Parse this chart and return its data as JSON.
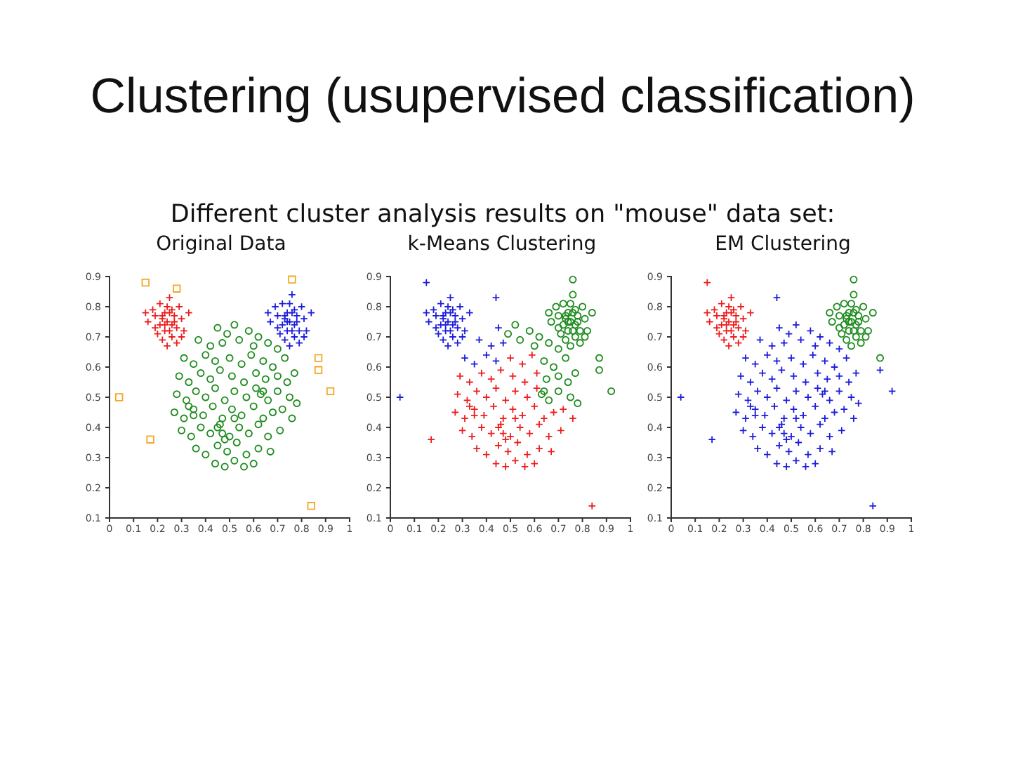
{
  "chart_data": [
    {
      "type": "other",
      "title": "Clustering (usupervised classification)",
      "subtitle": "Different cluster analysis results on \"mouse\" data set:"
    },
    {
      "type": "scatter",
      "title": "Original Data",
      "xlim": [
        0,
        1
      ],
      "ylim": [
        0.1,
        0.9
      ],
      "xticks": [
        0,
        0.1,
        0.2,
        0.3,
        0.4,
        0.5,
        0.6,
        0.7,
        0.8,
        0.9,
        1
      ],
      "yticks": [
        0.1,
        0.2,
        0.3,
        0.4,
        0.5,
        0.6,
        0.7,
        0.8,
        0.9
      ],
      "series": [
        {
          "color": "#ee1c1c",
          "marker": "cross",
          "x": [
            0.24,
            0.22,
            0.26,
            0.25,
            0.23,
            0.27,
            0.21,
            0.28,
            0.24,
            0.19,
            0.3,
            0.26,
            0.22,
            0.18,
            0.29,
            0.25,
            0.2,
            0.31,
            0.23,
            0.27,
            0.16,
            0.33,
            0.24,
            0.21,
            0.28,
            0.15,
            0.26,
            0.23,
            0.3,
            0.19,
            0.25,
            0.22
          ],
          "values": [
            0.75,
            0.76,
            0.74,
            0.78,
            0.72,
            0.77,
            0.74,
            0.73,
            0.8,
            0.77,
            0.76,
            0.7,
            0.69,
            0.79,
            0.8,
            0.83,
            0.71,
            0.72,
            0.78,
            0.75,
            0.75,
            0.78,
            0.67,
            0.81,
            0.68,
            0.78,
            0.79,
            0.74,
            0.7,
            0.73,
            0.72,
            0.77
          ]
        },
        {
          "color": "#1c1cdc",
          "marker": "cross",
          "x": [
            0.75,
            0.73,
            0.77,
            0.76,
            0.74,
            0.78,
            0.72,
            0.79,
            0.75,
            0.7,
            0.81,
            0.77,
            0.73,
            0.69,
            0.8,
            0.76,
            0.71,
            0.82,
            0.74,
            0.78,
            0.67,
            0.84,
            0.75,
            0.72,
            0.79,
            0.66,
            0.77,
            0.74,
            0.81,
            0.7,
            0.76,
            0.73
          ],
          "values": [
            0.75,
            0.77,
            0.74,
            0.78,
            0.72,
            0.77,
            0.74,
            0.72,
            0.81,
            0.77,
            0.76,
            0.7,
            0.69,
            0.8,
            0.8,
            0.84,
            0.71,
            0.72,
            0.78,
            0.75,
            0.75,
            0.78,
            0.67,
            0.81,
            0.68,
            0.78,
            0.79,
            0.75,
            0.7,
            0.73,
            0.72,
            0.76
          ]
        },
        {
          "color": "#1e8c1e",
          "marker": "circle",
          "x": [
            0.45,
            0.52,
            0.58,
            0.49,
            0.62,
            0.37,
            0.42,
            0.47,
            0.54,
            0.6,
            0.66,
            0.7,
            0.31,
            0.35,
            0.4,
            0.44,
            0.5,
            0.55,
            0.59,
            0.64,
            0.68,
            0.73,
            0.29,
            0.33,
            0.38,
            0.42,
            0.46,
            0.51,
            0.56,
            0.61,
            0.65,
            0.7,
            0.74,
            0.77,
            0.28,
            0.32,
            0.36,
            0.4,
            0.44,
            0.48,
            0.52,
            0.57,
            0.61,
            0.66,
            0.7,
            0.75,
            0.78,
            0.27,
            0.31,
            0.35,
            0.39,
            0.43,
            0.47,
            0.51,
            0.55,
            0.6,
            0.64,
            0.68,
            0.72,
            0.76,
            0.3,
            0.34,
            0.38,
            0.42,
            0.46,
            0.5,
            0.54,
            0.58,
            0.62,
            0.66,
            0.71,
            0.36,
            0.4,
            0.45,
            0.49,
            0.53,
            0.57,
            0.62,
            0.67,
            0.44,
            0.48,
            0.52,
            0.56,
            0.6,
            0.45,
            0.47,
            0.33,
            0.35,
            0.63,
            0.64,
            0.48,
            0.52
          ],
          "values": [
            0.73,
            0.74,
            0.72,
            0.71,
            0.7,
            0.69,
            0.67,
            0.68,
            0.69,
            0.67,
            0.68,
            0.66,
            0.63,
            0.61,
            0.64,
            0.62,
            0.63,
            0.61,
            0.64,
            0.62,
            0.6,
            0.63,
            0.57,
            0.55,
            0.58,
            0.56,
            0.59,
            0.57,
            0.55,
            0.58,
            0.56,
            0.57,
            0.55,
            0.58,
            0.51,
            0.49,
            0.52,
            0.5,
            0.53,
            0.49,
            0.52,
            0.5,
            0.53,
            0.49,
            0.52,
            0.5,
            0.48,
            0.45,
            0.43,
            0.46,
            0.44,
            0.47,
            0.43,
            0.46,
            0.44,
            0.47,
            0.43,
            0.45,
            0.46,
            0.43,
            0.39,
            0.37,
            0.4,
            0.38,
            0.41,
            0.37,
            0.4,
            0.38,
            0.41,
            0.37,
            0.39,
            0.33,
            0.31,
            0.34,
            0.32,
            0.35,
            0.31,
            0.33,
            0.32,
            0.28,
            0.27,
            0.29,
            0.27,
            0.28,
            0.4,
            0.38,
            0.47,
            0.44,
            0.51,
            0.52,
            0.36,
            0.43
          ]
        },
        {
          "color": "#f5a623",
          "marker": "square",
          "x": [
            0.15,
            0.28,
            0.76,
            0.87,
            0.87,
            0.92,
            0.04,
            0.17,
            0.84
          ],
          "values": [
            0.88,
            0.86,
            0.89,
            0.63,
            0.59,
            0.52,
            0.5,
            0.36,
            0.14
          ]
        }
      ]
    },
    {
      "type": "scatter",
      "title": "k-Means Clustering",
      "xlim": [
        0,
        1
      ],
      "ylim": [
        0.1,
        0.9
      ],
      "xticks": [
        0,
        0.1,
        0.2,
        0.3,
        0.4,
        0.5,
        0.6,
        0.7,
        0.8,
        0.9,
        1
      ],
      "yticks": [
        0.1,
        0.2,
        0.3,
        0.4,
        0.5,
        0.6,
        0.7,
        0.8,
        0.9
      ],
      "series": [
        {
          "color": "#1c1cdc",
          "marker": "cross",
          "x": [
            0.24,
            0.22,
            0.26,
            0.25,
            0.23,
            0.27,
            0.21,
            0.28,
            0.24,
            0.19,
            0.3,
            0.26,
            0.22,
            0.18,
            0.29,
            0.25,
            0.2,
            0.31,
            0.23,
            0.27,
            0.16,
            0.33,
            0.24,
            0.21,
            0.28,
            0.15,
            0.26,
            0.23,
            0.3,
            0.19,
            0.25,
            0.22,
            0.45,
            0.37,
            0.42,
            0.47,
            0.31,
            0.35,
            0.4,
            0.44,
            0.15,
            0.44,
            0.04
          ],
          "values": [
            0.75,
            0.76,
            0.74,
            0.78,
            0.72,
            0.77,
            0.74,
            0.73,
            0.8,
            0.77,
            0.76,
            0.7,
            0.69,
            0.79,
            0.8,
            0.83,
            0.71,
            0.72,
            0.78,
            0.75,
            0.75,
            0.78,
            0.67,
            0.81,
            0.68,
            0.78,
            0.79,
            0.74,
            0.7,
            0.73,
            0.72,
            0.77,
            0.73,
            0.69,
            0.67,
            0.68,
            0.63,
            0.61,
            0.64,
            0.62,
            0.88,
            0.83,
            0.5
          ]
        },
        {
          "color": "#1e8c1e",
          "marker": "circle",
          "x": [
            0.75,
            0.73,
            0.77,
            0.76,
            0.74,
            0.78,
            0.72,
            0.79,
            0.75,
            0.7,
            0.81,
            0.77,
            0.73,
            0.69,
            0.8,
            0.76,
            0.71,
            0.82,
            0.74,
            0.78,
            0.67,
            0.84,
            0.75,
            0.72,
            0.79,
            0.66,
            0.77,
            0.74,
            0.81,
            0.7,
            0.76,
            0.73,
            0.52,
            0.58,
            0.49,
            0.62,
            0.54,
            0.6,
            0.66,
            0.7,
            0.64,
            0.68,
            0.73,
            0.65,
            0.7,
            0.74,
            0.77,
            0.66,
            0.7,
            0.75,
            0.78,
            0.63,
            0.64,
            0.76,
            0.87,
            0.87,
            0.92
          ],
          "values": [
            0.75,
            0.77,
            0.74,
            0.78,
            0.72,
            0.77,
            0.74,
            0.72,
            0.81,
            0.77,
            0.76,
            0.7,
            0.69,
            0.8,
            0.8,
            0.84,
            0.71,
            0.72,
            0.78,
            0.75,
            0.75,
            0.78,
            0.67,
            0.81,
            0.68,
            0.78,
            0.79,
            0.75,
            0.7,
            0.73,
            0.72,
            0.76,
            0.74,
            0.72,
            0.71,
            0.7,
            0.69,
            0.67,
            0.68,
            0.66,
            0.62,
            0.6,
            0.63,
            0.56,
            0.57,
            0.55,
            0.58,
            0.49,
            0.52,
            0.5,
            0.48,
            0.51,
            0.52,
            0.89,
            0.63,
            0.59,
            0.52
          ]
        },
        {
          "color": "#ee1c1c",
          "marker": "cross",
          "x": [
            0.5,
            0.55,
            0.59,
            0.29,
            0.33,
            0.38,
            0.42,
            0.46,
            0.51,
            0.56,
            0.61,
            0.28,
            0.32,
            0.36,
            0.4,
            0.44,
            0.48,
            0.52,
            0.57,
            0.61,
            0.27,
            0.31,
            0.35,
            0.39,
            0.43,
            0.47,
            0.51,
            0.55,
            0.6,
            0.64,
            0.68,
            0.72,
            0.76,
            0.3,
            0.34,
            0.38,
            0.42,
            0.46,
            0.5,
            0.54,
            0.58,
            0.62,
            0.66,
            0.71,
            0.36,
            0.4,
            0.45,
            0.49,
            0.53,
            0.57,
            0.62,
            0.67,
            0.44,
            0.48,
            0.52,
            0.56,
            0.6,
            0.45,
            0.47,
            0.33,
            0.35,
            0.48,
            0.52,
            0.17,
            0.84
          ],
          "values": [
            0.63,
            0.61,
            0.64,
            0.57,
            0.55,
            0.58,
            0.56,
            0.59,
            0.57,
            0.55,
            0.58,
            0.51,
            0.49,
            0.52,
            0.5,
            0.53,
            0.49,
            0.52,
            0.5,
            0.53,
            0.45,
            0.43,
            0.46,
            0.44,
            0.47,
            0.43,
            0.46,
            0.44,
            0.47,
            0.43,
            0.45,
            0.46,
            0.43,
            0.39,
            0.37,
            0.4,
            0.38,
            0.41,
            0.37,
            0.4,
            0.38,
            0.41,
            0.37,
            0.39,
            0.33,
            0.31,
            0.34,
            0.32,
            0.35,
            0.31,
            0.33,
            0.32,
            0.28,
            0.27,
            0.29,
            0.27,
            0.28,
            0.4,
            0.38,
            0.47,
            0.44,
            0.36,
            0.43,
            0.36,
            0.14
          ]
        }
      ]
    },
    {
      "type": "scatter",
      "title": "EM Clustering",
      "xlim": [
        0,
        1
      ],
      "ylim": [
        0.1,
        0.9
      ],
      "xticks": [
        0,
        0.1,
        0.2,
        0.3,
        0.4,
        0.5,
        0.6,
        0.7,
        0.8,
        0.9,
        1
      ],
      "yticks": [
        0.1,
        0.2,
        0.3,
        0.4,
        0.5,
        0.6,
        0.7,
        0.8,
        0.9
      ],
      "series": [
        {
          "color": "#ee1c1c",
          "marker": "cross",
          "x": [
            0.24,
            0.22,
            0.26,
            0.25,
            0.23,
            0.27,
            0.21,
            0.28,
            0.24,
            0.19,
            0.3,
            0.26,
            0.22,
            0.18,
            0.29,
            0.25,
            0.2,
            0.31,
            0.23,
            0.27,
            0.16,
            0.33,
            0.24,
            0.21,
            0.28,
            0.15,
            0.26,
            0.23,
            0.3,
            0.19,
            0.25,
            0.22,
            0.15
          ],
          "values": [
            0.75,
            0.76,
            0.74,
            0.78,
            0.72,
            0.77,
            0.74,
            0.73,
            0.8,
            0.77,
            0.76,
            0.7,
            0.69,
            0.79,
            0.8,
            0.83,
            0.71,
            0.72,
            0.78,
            0.75,
            0.75,
            0.78,
            0.67,
            0.81,
            0.68,
            0.78,
            0.79,
            0.74,
            0.7,
            0.73,
            0.72,
            0.77,
            0.88
          ]
        },
        {
          "color": "#1e8c1e",
          "marker": "circle",
          "x": [
            0.75,
            0.73,
            0.77,
            0.76,
            0.74,
            0.78,
            0.72,
            0.79,
            0.75,
            0.7,
            0.81,
            0.77,
            0.73,
            0.69,
            0.8,
            0.76,
            0.71,
            0.82,
            0.74,
            0.78,
            0.67,
            0.84,
            0.75,
            0.72,
            0.79,
            0.66,
            0.77,
            0.74,
            0.81,
            0.7,
            0.76,
            0.73,
            0.76,
            0.87
          ],
          "values": [
            0.75,
            0.77,
            0.74,
            0.78,
            0.72,
            0.77,
            0.74,
            0.72,
            0.81,
            0.77,
            0.76,
            0.7,
            0.69,
            0.8,
            0.8,
            0.84,
            0.71,
            0.72,
            0.78,
            0.75,
            0.75,
            0.78,
            0.67,
            0.81,
            0.68,
            0.78,
            0.79,
            0.75,
            0.7,
            0.73,
            0.72,
            0.76,
            0.89,
            0.63
          ]
        },
        {
          "color": "#1c1cdc",
          "marker": "cross",
          "x": [
            0.45,
            0.52,
            0.58,
            0.49,
            0.62,
            0.37,
            0.42,
            0.47,
            0.54,
            0.6,
            0.66,
            0.7,
            0.31,
            0.35,
            0.4,
            0.44,
            0.5,
            0.55,
            0.59,
            0.64,
            0.68,
            0.73,
            0.29,
            0.33,
            0.38,
            0.42,
            0.46,
            0.51,
            0.56,
            0.61,
            0.65,
            0.7,
            0.74,
            0.77,
            0.28,
            0.32,
            0.36,
            0.4,
            0.44,
            0.48,
            0.52,
            0.57,
            0.61,
            0.66,
            0.7,
            0.75,
            0.78,
            0.27,
            0.31,
            0.35,
            0.39,
            0.43,
            0.47,
            0.51,
            0.55,
            0.6,
            0.64,
            0.68,
            0.72,
            0.76,
            0.3,
            0.34,
            0.38,
            0.42,
            0.46,
            0.5,
            0.54,
            0.58,
            0.62,
            0.66,
            0.71,
            0.36,
            0.4,
            0.45,
            0.49,
            0.53,
            0.57,
            0.62,
            0.67,
            0.44,
            0.48,
            0.52,
            0.56,
            0.6,
            0.45,
            0.47,
            0.33,
            0.35,
            0.63,
            0.64,
            0.48,
            0.52,
            0.44,
            0.87,
            0.92,
            0.04,
            0.17,
            0.84
          ],
          "values": [
            0.73,
            0.74,
            0.72,
            0.71,
            0.7,
            0.69,
            0.67,
            0.68,
            0.69,
            0.67,
            0.68,
            0.66,
            0.63,
            0.61,
            0.64,
            0.62,
            0.63,
            0.61,
            0.64,
            0.62,
            0.6,
            0.63,
            0.57,
            0.55,
            0.58,
            0.56,
            0.59,
            0.57,
            0.55,
            0.58,
            0.56,
            0.57,
            0.55,
            0.58,
            0.51,
            0.49,
            0.52,
            0.5,
            0.53,
            0.49,
            0.52,
            0.5,
            0.53,
            0.49,
            0.52,
            0.5,
            0.48,
            0.45,
            0.43,
            0.46,
            0.44,
            0.47,
            0.43,
            0.46,
            0.44,
            0.47,
            0.43,
            0.45,
            0.46,
            0.43,
            0.39,
            0.37,
            0.4,
            0.38,
            0.41,
            0.37,
            0.4,
            0.38,
            0.41,
            0.37,
            0.39,
            0.33,
            0.31,
            0.34,
            0.32,
            0.35,
            0.31,
            0.33,
            0.32,
            0.28,
            0.27,
            0.29,
            0.27,
            0.28,
            0.4,
            0.38,
            0.47,
            0.44,
            0.51,
            0.52,
            0.36,
            0.43,
            0.83,
            0.59,
            0.52,
            0.5,
            0.36,
            0.14
          ]
        }
      ]
    }
  ]
}
